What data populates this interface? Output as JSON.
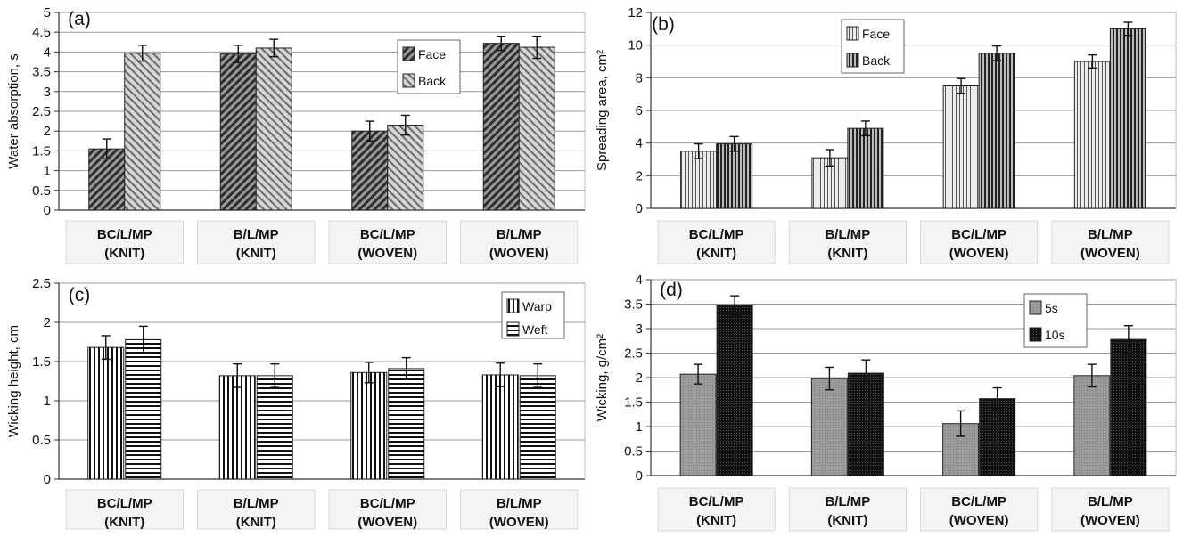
{
  "chart_data": [
    {
      "panel_label": "(a)",
      "type": "bar",
      "ylabel": "Water absorption, s",
      "ylim": [
        0,
        5
      ],
      "yticks": [
        "0",
        "0.5",
        "1",
        "1.5",
        "2",
        "2.5",
        "3",
        "3.5",
        "4",
        "4.5",
        "5"
      ],
      "categories": [
        [
          "BC/L/MP",
          "(KNIT)"
        ],
        [
          "B/L/MP",
          "(KNIT)"
        ],
        [
          "BC/L/MP",
          "(WOVEN)"
        ],
        [
          "B/L/MP",
          "(WOVEN)"
        ]
      ],
      "series": [
        {
          "name": "Face",
          "values": [
            1.55,
            3.95,
            2.0,
            4.22
          ],
          "errors": [
            0.25,
            0.22,
            0.25,
            0.18
          ],
          "pattern": "diag-dense"
        },
        {
          "name": "Back",
          "values": [
            3.97,
            4.1,
            2.15,
            4.12
          ],
          "errors": [
            0.2,
            0.22,
            0.25,
            0.28
          ],
          "pattern": "diag-light"
        }
      ],
      "grid": true,
      "legend_position": "top-right"
    },
    {
      "panel_label": "(b)",
      "type": "bar",
      "ylabel": "Spreading area, cm²",
      "ylim": [
        0,
        12
      ],
      "yticks": [
        "0",
        "2",
        "4",
        "6",
        "8",
        "10",
        "12"
      ],
      "categories": [
        [
          "BC/L/MP",
          "(KNIT)"
        ],
        [
          "B/L/MP",
          "(KNIT)"
        ],
        [
          "BC/L/MP",
          "(WOVEN)"
        ],
        [
          "B/L/MP",
          "(WOVEN)"
        ]
      ],
      "series": [
        {
          "name": "Face",
          "values": [
            3.5,
            3.1,
            7.5,
            9.0
          ],
          "errors": [
            0.45,
            0.5,
            0.45,
            0.4
          ],
          "pattern": "vert-light"
        },
        {
          "name": "Back",
          "values": [
            3.95,
            4.9,
            9.5,
            11.0
          ],
          "errors": [
            0.45,
            0.45,
            0.45,
            0.4
          ],
          "pattern": "vert-dense"
        }
      ],
      "grid": true,
      "legend_position": "top-center"
    },
    {
      "panel_label": "(c)",
      "type": "bar",
      "ylabel": "Wicking height, cm",
      "ylim": [
        0,
        2.5
      ],
      "yticks": [
        "0",
        "0.5",
        "1",
        "1.5",
        "2",
        "2.5"
      ],
      "categories": [
        [
          "BC/L/MP",
          "(KNIT)"
        ],
        [
          "B/L/MP",
          "(KNIT)"
        ],
        [
          "BC/L/MP",
          "(WOVEN)"
        ],
        [
          "B/L/MP",
          "(WOVEN)"
        ]
      ],
      "series": [
        {
          "name": "Warp",
          "values": [
            1.68,
            1.32,
            1.36,
            1.33
          ],
          "errors": [
            0.15,
            0.15,
            0.13,
            0.15
          ],
          "pattern": "vert"
        },
        {
          "name": "Weft",
          "values": [
            1.78,
            1.32,
            1.41,
            1.32
          ],
          "errors": [
            0.17,
            0.15,
            0.14,
            0.15
          ],
          "pattern": "horiz"
        }
      ],
      "grid": true,
      "legend_position": "top-right"
    },
    {
      "panel_label": "(d)",
      "type": "bar",
      "ylabel": "Wicking, g/cm²",
      "ylim": [
        0,
        4
      ],
      "yticks": [
        "0",
        "0.5",
        "1",
        "1.5",
        "2",
        "2.5",
        "3",
        "3.5",
        "4"
      ],
      "categories": [
        [
          "BC/L/MP",
          "(KNIT)"
        ],
        [
          "B/L/MP",
          "(KNIT)"
        ],
        [
          "BC/L/MP",
          "(WOVEN)"
        ],
        [
          "B/L/MP",
          "(WOVEN)"
        ]
      ],
      "series": [
        {
          "name": "5s",
          "values": [
            2.07,
            1.98,
            1.06,
            2.04
          ],
          "errors": [
            0.2,
            0.23,
            0.26,
            0.23
          ],
          "pattern": "gray"
        },
        {
          "name": "10s",
          "values": [
            3.47,
            2.09,
            1.57,
            2.78
          ],
          "errors": [
            0.2,
            0.27,
            0.22,
            0.28
          ],
          "pattern": "black"
        }
      ],
      "grid": true,
      "legend_position": "top-center"
    }
  ]
}
